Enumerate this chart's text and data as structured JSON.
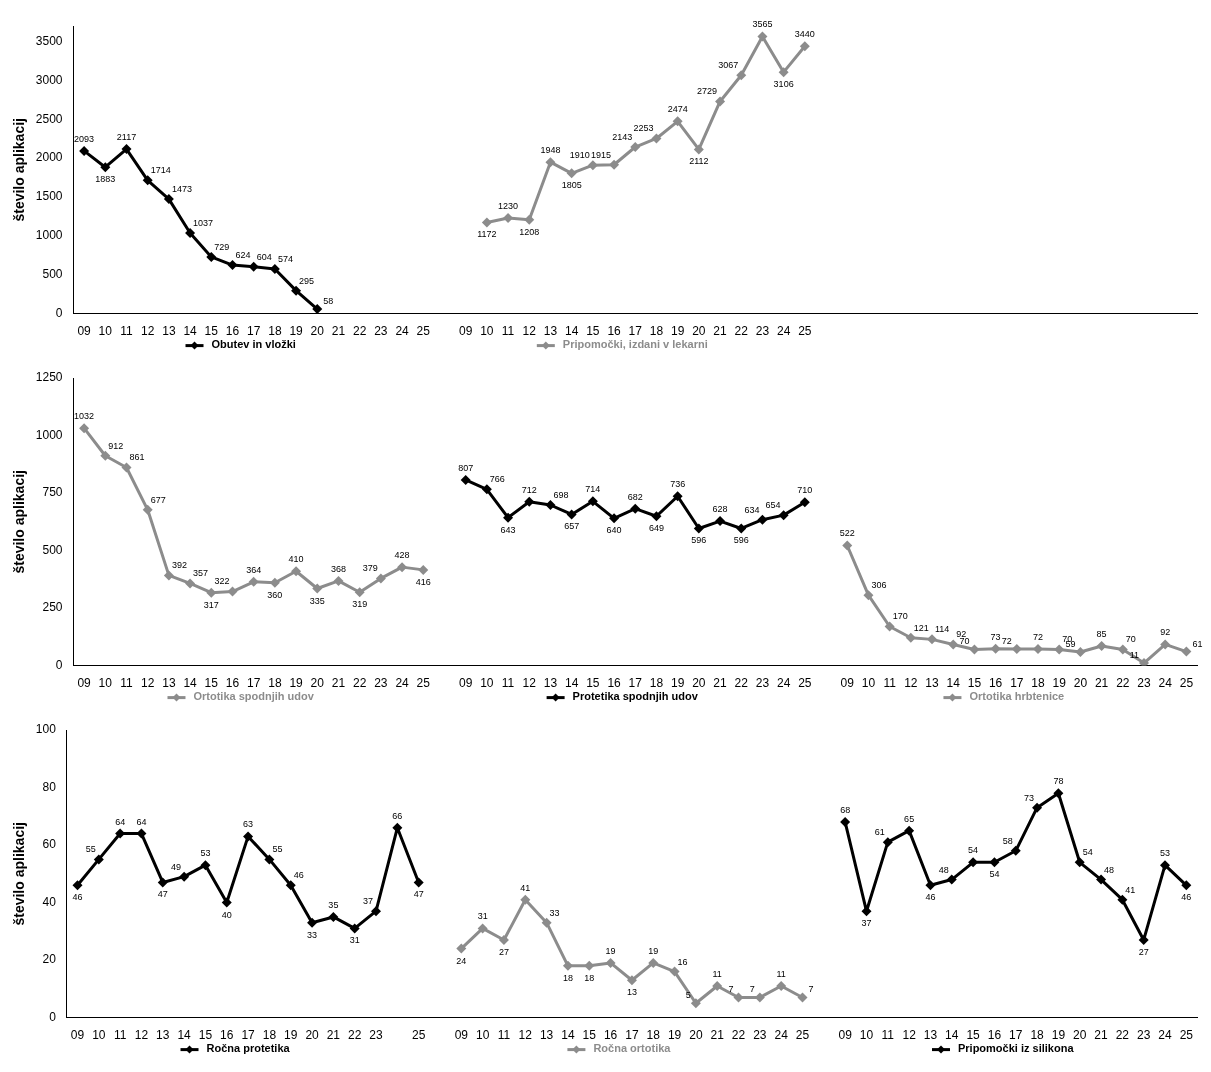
{
  "chart_data": [
    {
      "type": "line",
      "ylabel": "število aplikacij",
      "ylim": [
        0,
        3700
      ],
      "yticks": [
        0,
        500,
        1000,
        1500,
        2000,
        2500,
        3000,
        3500
      ],
      "grid": false,
      "legend": "bottom",
      "marker": "diamond",
      "line_style": "solid",
      "data_labels": true,
      "tick_labels": "xy",
      "categories": [
        "09",
        "10",
        "11",
        "12",
        "13",
        "14",
        "15",
        "16",
        "17",
        "18",
        "19",
        "20",
        "21",
        "22",
        "23",
        "24",
        "25",
        null,
        "09",
        "10",
        "11",
        "12",
        "13",
        "14",
        "15",
        "16",
        "17",
        "18",
        "19",
        "20",
        "21",
        "22",
        "23",
        "24",
        "25",
        null,
        null,
        null,
        null,
        null,
        null,
        null,
        null,
        null,
        null,
        null,
        null,
        null,
        null,
        null,
        null,
        null,
        null
      ],
      "series": [
        {
          "name": "Obutev in vložki",
          "color": "#000000",
          "values": [
            2093,
            1883,
            2117,
            1714,
            1473,
            1037,
            729,
            624,
            604,
            574,
            295,
            58,
            null,
            null,
            null,
            null,
            null,
            null,
            null,
            null,
            null,
            null,
            null,
            null,
            null,
            null,
            null,
            null,
            null,
            null,
            null,
            null,
            null,
            null,
            null,
            null,
            null,
            null,
            null,
            null,
            null,
            null,
            null,
            null,
            null,
            null,
            null,
            null,
            null,
            null,
            null,
            null,
            null
          ]
        },
        {
          "name": "Pripomočki, izdani v lekarni",
          "color": "#8c8c8c",
          "values": [
            null,
            null,
            null,
            null,
            null,
            null,
            null,
            null,
            null,
            null,
            null,
            null,
            null,
            null,
            null,
            null,
            null,
            null,
            null,
            1172,
            1230,
            1208,
            1948,
            1805,
            1910,
            1915,
            2143,
            2253,
            2474,
            2112,
            2729,
            3067,
            3565,
            3106,
            3440,
            null,
            null,
            null,
            null,
            null,
            null,
            null,
            null,
            null,
            null,
            null,
            null,
            null,
            null,
            null,
            null,
            null,
            null
          ]
        }
      ]
    },
    {
      "type": "line",
      "ylabel": "število aplikacij",
      "ylim": [
        0,
        1250
      ],
      "yticks": [
        0,
        250,
        500,
        750,
        1000,
        1250
      ],
      "grid": false,
      "legend": "bottom",
      "marker": "diamond",
      "line_style": "solid",
      "data_labels": true,
      "categories": [
        "09",
        "10",
        "11",
        "12",
        "13",
        "14",
        "15",
        "16",
        "17",
        "18",
        "19",
        "20",
        "21",
        "22",
        "23",
        "24",
        "25",
        null,
        "09",
        "10",
        "11",
        "12",
        "13",
        "14",
        "15",
        "16",
        "17",
        "18",
        "19",
        "20",
        "21",
        "22",
        "23",
        "24",
        "25",
        null,
        "09",
        "10",
        "11",
        "12",
        "13",
        "14",
        "15",
        "16",
        "17",
        "18",
        "19",
        "20",
        "21",
        "22",
        "23",
        "24",
        "25"
      ],
      "series": [
        {
          "name": "Ortotika spodnjih udov",
          "color": "#8c8c8c",
          "values": [
            1032,
            912,
            861,
            677,
            392,
            357,
            317,
            322,
            364,
            360,
            410,
            335,
            368,
            319,
            379,
            428,
            416,
            null,
            null,
            null,
            null,
            null,
            null,
            null,
            null,
            null,
            null,
            null,
            null,
            null,
            null,
            null,
            null,
            null,
            null,
            null,
            null,
            null,
            null,
            null,
            null,
            null,
            null,
            null,
            null,
            null,
            null,
            null,
            null,
            null,
            null,
            null,
            null
          ]
        },
        {
          "name": "Protetika spodnjih udov",
          "color": "#000000",
          "values": [
            null,
            null,
            null,
            null,
            null,
            null,
            null,
            null,
            null,
            null,
            null,
            null,
            null,
            null,
            null,
            null,
            null,
            null,
            807,
            766,
            643,
            712,
            698,
            657,
            714,
            640,
            682,
            649,
            736,
            596,
            628,
            596,
            634,
            654,
            710,
            null,
            null,
            null,
            null,
            null,
            null,
            null,
            null,
            null,
            null,
            null,
            null,
            null,
            null,
            null,
            null,
            null,
            null
          ]
        },
        {
          "name": "Ortotika hrbtenice",
          "color": "#8c8c8c",
          "values": [
            null,
            null,
            null,
            null,
            null,
            null,
            null,
            null,
            null,
            null,
            null,
            null,
            null,
            null,
            null,
            null,
            null,
            null,
            null,
            null,
            null,
            null,
            null,
            null,
            null,
            null,
            null,
            null,
            null,
            null,
            null,
            null,
            null,
            null,
            null,
            null,
            522,
            306,
            170,
            121,
            114,
            92,
            70,
            73,
            72,
            72,
            70,
            59,
            85,
            70,
            11,
            92,
            61
          ]
        }
      ]
    },
    {
      "type": "line",
      "ylabel": "število aplikacij",
      "ylim": [
        0,
        100
      ],
      "yticks": [
        0,
        20,
        40,
        60,
        80,
        100
      ],
      "grid": false,
      "legend": "bottom",
      "marker": "diamond",
      "line_style": "solid",
      "data_labels": true,
      "categories": [
        "09",
        "10",
        "11",
        "12",
        "13",
        "14",
        "15",
        "16",
        "17",
        "18",
        "19",
        "20",
        "21",
        "22",
        "23",
        null,
        "25",
        null,
        "09",
        "10",
        "11",
        "12",
        "13",
        "14",
        "15",
        "16",
        "17",
        "18",
        "19",
        "20",
        "21",
        "22",
        "23",
        "24",
        "25",
        null,
        "09",
        "10",
        "11",
        "12",
        "13",
        "14",
        "15",
        "16",
        "17",
        "18",
        "19",
        "20",
        "21",
        "22",
        "23",
        "24",
        "25"
      ],
      "series": [
        {
          "name": "Ročna protetika",
          "color": "#000000",
          "values": [
            46,
            55,
            64,
            64,
            47,
            49,
            53,
            40,
            63,
            55,
            46,
            33,
            35,
            31,
            37,
            66,
            47,
            null,
            null,
            null,
            null,
            null,
            null,
            null,
            null,
            null,
            null,
            null,
            null,
            null,
            null,
            null,
            null,
            null,
            null,
            null,
            null,
            null,
            null,
            null,
            null,
            null,
            null,
            null,
            null,
            null,
            null,
            null,
            null,
            null,
            null,
            null,
            null
          ]
        },
        {
          "name": "Ročna ortotika",
          "color": "#8c8c8c",
          "values": [
            null,
            null,
            null,
            null,
            null,
            null,
            null,
            null,
            null,
            null,
            null,
            null,
            null,
            null,
            null,
            null,
            null,
            null,
            24,
            31,
            27,
            41,
            33,
            18,
            18,
            19,
            13,
            19,
            16,
            5,
            11,
            7,
            7,
            11,
            7,
            null,
            null,
            null,
            null,
            null,
            null,
            null,
            null,
            null,
            null,
            null,
            null,
            null,
            null,
            null,
            null,
            null,
            null
          ]
        },
        {
          "name": "Pripomočki iz silikona",
          "color": "#000000",
          "values": [
            null,
            null,
            null,
            null,
            null,
            null,
            null,
            null,
            null,
            null,
            null,
            null,
            null,
            null,
            null,
            null,
            null,
            null,
            null,
            null,
            null,
            null,
            null,
            null,
            null,
            null,
            null,
            null,
            null,
            null,
            null,
            null,
            null,
            null,
            null,
            null,
            68,
            37,
            61,
            65,
            46,
            48,
            54,
            54,
            58,
            73,
            78,
            54,
            48,
            41,
            27,
            53,
            46
          ]
        }
      ]
    }
  ]
}
